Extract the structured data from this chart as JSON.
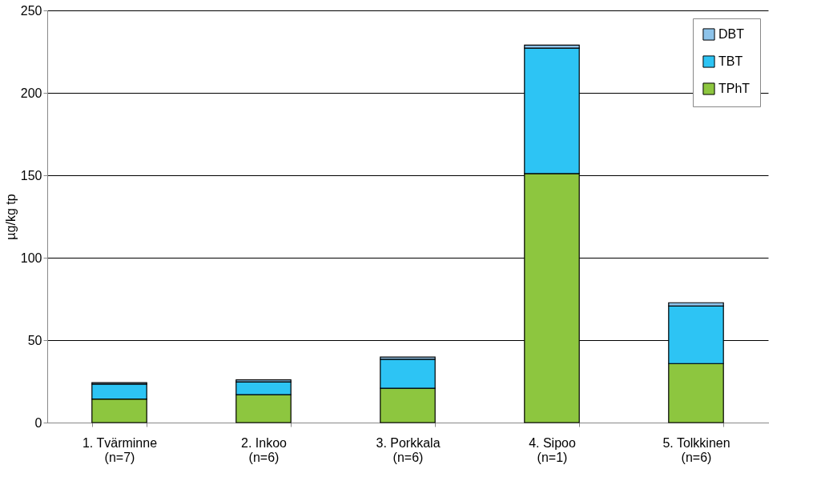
{
  "chart_data": {
    "type": "bar",
    "stacked": true,
    "ylabel": "µg/kg tp",
    "categories": [
      "1. Tvärminne\n(n=7)",
      "2. Inkoo\n(n=6)",
      "3. Porkkala\n(n=6)",
      "4. Sipoo\n(n=1)",
      "5. Tolkkinen\n(n=6)"
    ],
    "series": [
      {
        "name": "TPhT",
        "color": "#8dc63f",
        "values": [
          14.3,
          16.9,
          20.8,
          151,
          35.8
        ]
      },
      {
        "name": "TBT",
        "color": "#2dc4f4",
        "values": [
          9.1,
          7.8,
          17.6,
          76.1,
          34.9
        ]
      },
      {
        "name": "DBT",
        "color": "#8dc3ea",
        "values": [
          0.8,
          1.2,
          1.3,
          1.8,
          2.0
        ]
      }
    ],
    "ylim": [
      0,
      250
    ],
    "yticks": [
      0,
      50,
      100,
      150,
      200,
      250
    ],
    "grid": "y",
    "legend": "top right"
  }
}
